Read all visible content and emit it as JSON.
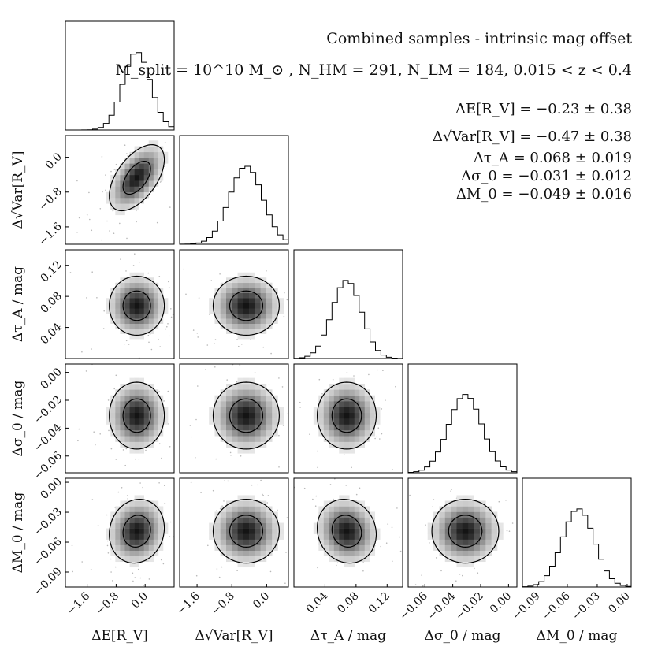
{
  "chart_data": {
    "type": "corner",
    "title": "Combined samples - intrinsic mag offset",
    "subtitle": "M_split = 10^10 M_⊙ , N_HM = 291, N_LM = 184, 0.015 < z < 0.4",
    "parameters": [
      {
        "label": "ΔE[R_V]",
        "ylabel": "ΔE[R_V]",
        "ticks": [
          -1.6,
          -0.8,
          0.0
        ],
        "tick_labels": [
          "−1.6",
          "−0.8",
          "0.0"
        ],
        "range": [
          -2.2,
          0.8
        ],
        "mean": -0.23,
        "sd": 0.38
      },
      {
        "label": "Δ√Var[R_V]",
        "ylabel": "Δ√Var[R_V]",
        "ticks": [
          -1.6,
          -0.8,
          0.0
        ],
        "tick_labels": [
          "−1.6",
          "−0.8",
          "0.0"
        ],
        "range": [
          -2.0,
          0.5
        ],
        "mean": -0.47,
        "sd": 0.38
      },
      {
        "label": "Δτ_A / mag",
        "ylabel": "Δτ_A / mag",
        "ticks": [
          0.04,
          0.08,
          0.12
        ],
        "tick_labels": [
          "0.04",
          "0.08",
          "0.12"
        ],
        "range": [
          0.0,
          0.14
        ],
        "mean": 0.068,
        "sd": 0.019
      },
      {
        "label": "Δσ_0 / mag",
        "ylabel": "Δσ_0 / mag",
        "ticks": [
          -0.06,
          -0.04,
          -0.02,
          0.0
        ],
        "tick_labels": [
          "−0.06",
          "−0.04",
          "−0.02",
          "0.00"
        ],
        "range": [
          -0.072,
          0.006
        ],
        "mean": -0.031,
        "sd": 0.012
      },
      {
        "label": "ΔM_0 / mag",
        "ylabel": "ΔM_0 / mag",
        "ticks": [
          -0.09,
          -0.06,
          -0.03,
          0.0
        ],
        "tick_labels": [
          "−0.09",
          "−0.06",
          "−0.03",
          "0.00"
        ],
        "range": [
          -0.105,
          0.004
        ],
        "mean": -0.049,
        "sd": 0.016
      }
    ],
    "correlations": [
      [
        1,
        0.55,
        0.0,
        0.0,
        0.1
      ],
      [
        0.55,
        1,
        0.0,
        0.0,
        0.0
      ],
      [
        0.0,
        0.0,
        1,
        0.0,
        -0.1
      ],
      [
        0.0,
        0.0,
        0.0,
        1,
        0.0
      ],
      [
        0.1,
        0.0,
        -0.1,
        0.0,
        1
      ]
    ],
    "results": [
      "ΔE[R_V] = −0.23 ± 0.38",
      "Δ√Var[R_V] = −0.47 ± 0.38",
      "Δτ_A = 0.068 ± 0.019",
      "Δσ_0 = −0.031 ± 0.012",
      "ΔM_0 = −0.049 ± 0.016"
    ],
    "contour_levels_sigma": [
      1,
      2
    ]
  }
}
